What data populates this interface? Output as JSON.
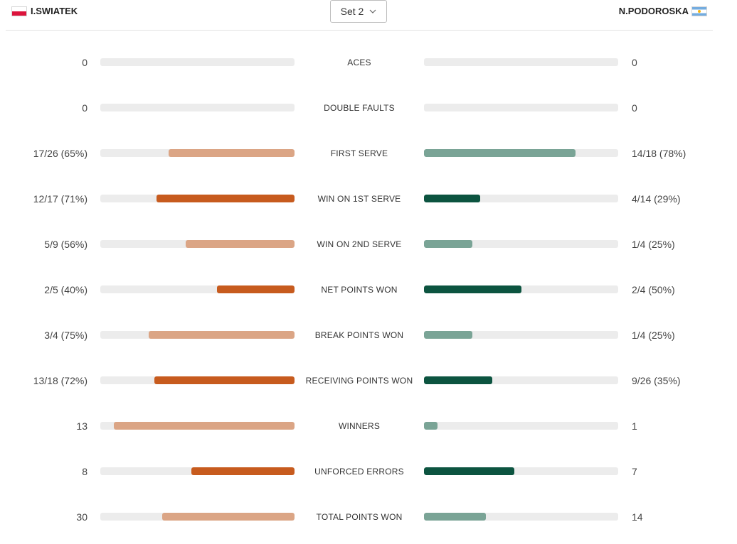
{
  "header": {
    "player1": "I.SWIATEK",
    "player2": "N.PODOROSKA",
    "set_selector": "Set 2"
  },
  "colors": {
    "left_strong": "#c75b1e",
    "left_light": "#dba585",
    "right_strong": "#0c5440",
    "right_light": "#7aa496",
    "track": "#ececec"
  },
  "stats": [
    {
      "label": "ACES",
      "left": "0",
      "right": "0",
      "left_fraction": 0,
      "right_fraction": 0,
      "left_strong": false,
      "right_strong": false
    },
    {
      "label": "DOUBLE FAULTS",
      "left": "0",
      "right": "0",
      "left_fraction": 0,
      "right_fraction": 0,
      "left_strong": false,
      "right_strong": false
    },
    {
      "label": "FIRST SERVE",
      "left": "17/26 (65%)",
      "right": "14/18 (78%)",
      "left_fraction": 0.65,
      "right_fraction": 0.78,
      "left_strong": false,
      "right_strong": false
    },
    {
      "label": "WIN ON 1ST SERVE",
      "left": "12/17 (71%)",
      "right": "4/14 (29%)",
      "left_fraction": 0.71,
      "right_fraction": 0.29,
      "left_strong": true,
      "right_strong": true
    },
    {
      "label": "WIN ON 2ND SERVE",
      "left": "5/9 (56%)",
      "right": "1/4 (25%)",
      "left_fraction": 0.56,
      "right_fraction": 0.25,
      "left_strong": false,
      "right_strong": false
    },
    {
      "label": "NET POINTS WON",
      "left": "2/5 (40%)",
      "right": "2/4 (50%)",
      "left_fraction": 0.4,
      "right_fraction": 0.5,
      "left_strong": true,
      "right_strong": true
    },
    {
      "label": "BREAK POINTS WON",
      "left": "3/4 (75%)",
      "right": "1/4 (25%)",
      "left_fraction": 0.75,
      "right_fraction": 0.25,
      "left_strong": false,
      "right_strong": false
    },
    {
      "label": "RECEIVING POINTS WON",
      "left": "13/18 (72%)",
      "right": "9/26 (35%)",
      "left_fraction": 0.72,
      "right_fraction": 0.35,
      "left_strong": true,
      "right_strong": true
    },
    {
      "label": "WINNERS",
      "left": "13",
      "right": "1",
      "left_fraction": 0.929,
      "right_fraction": 0.071,
      "left_strong": false,
      "right_strong": false
    },
    {
      "label": "UNFORCED ERRORS",
      "left": "8",
      "right": "7",
      "left_fraction": 0.533,
      "right_fraction": 0.467,
      "left_strong": true,
      "right_strong": true
    },
    {
      "label": "TOTAL POINTS WON",
      "left": "30",
      "right": "14",
      "left_fraction": 0.682,
      "right_fraction": 0.318,
      "left_strong": false,
      "right_strong": false
    }
  ]
}
